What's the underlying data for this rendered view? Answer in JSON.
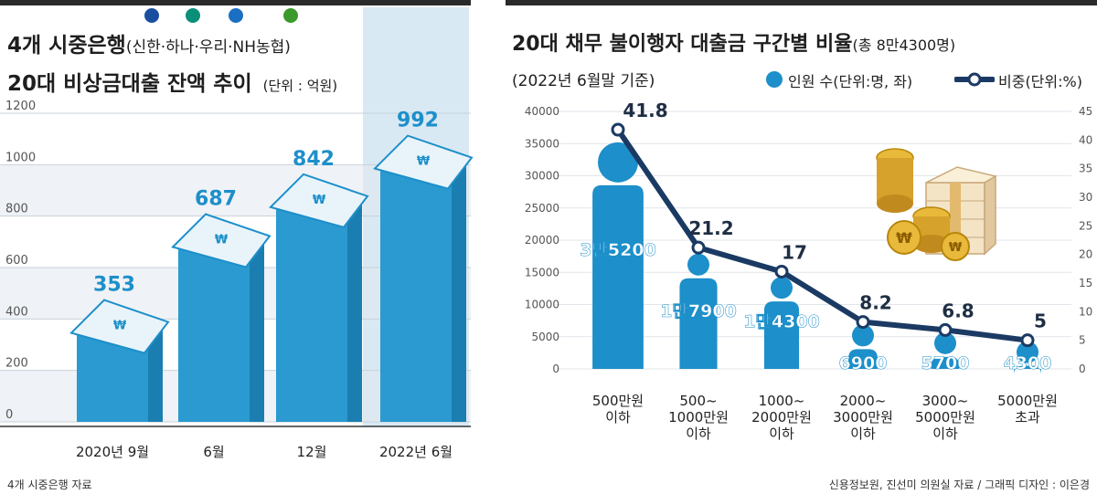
{
  "left": {
    "title_main": "4개 시중은행",
    "title_banks": "(신한·하나·우리·NH농협)",
    "title_line2": "20대 비상금대출 잔액 추이",
    "unit": "(단위 : 억원)",
    "source": "4개 시중은행 자료",
    "bank_logos": [
      {
        "name": "shinhan-logo",
        "color": "#1a4fa0"
      },
      {
        "name": "hana-logo",
        "color": "#0a8f7a"
      },
      {
        "name": "woori-logo",
        "color": "#1a6fc2"
      },
      {
        "name": "nh-logo",
        "color": "#3a9a2a"
      }
    ]
  },
  "right": {
    "title_main": "20대 채무 불이행자 대출금 구간별 비율",
    "title_total": "(총 8만4300명)",
    "subtitle": "(2022년 6월말 기준)",
    "legend_people": "인원 수(단위:명, 좌)",
    "legend_ratio": "비중(단위:%)",
    "source": "신용정보원, 진선미 의원실 자료 / 그래픽 디자인 : 이은경"
  },
  "chart_data": [
    {
      "type": "bar",
      "categories": [
        "2020년 9월",
        "6월",
        "12월",
        "2022년 6월"
      ],
      "values": [
        353,
        687,
        842,
        992
      ],
      "ylim": [
        0,
        1200
      ],
      "yticks": [
        0,
        200,
        400,
        600,
        800,
        1000,
        1200
      ],
      "highlight_index": 3,
      "grid": "alternating bands",
      "colors": {
        "bar": "#2a9ad0",
        "highlight": "#d9e9f4",
        "label": "#1d8fca"
      }
    },
    {
      "type": "bar",
      "categories": [
        "500만원\n이하",
        "500~\n1000만원\n이하",
        "1000~\n2000만원\n이하",
        "2000~\n3000만원\n이하",
        "3000~\n5000만원\n이하",
        "5000만원\n초과"
      ],
      "series": [
        {
          "values": [
            35200,
            17900,
            14300,
            6900,
            5700,
            4300
          ],
          "labels": [
            "3만5200",
            "1만7900",
            "1만4300",
            "6900",
            "5700",
            "4300"
          ],
          "axis": "left"
        },
        {
          "values": [
            41.8,
            21.2,
            17,
            8.2,
            6.8,
            5
          ],
          "axis": "right",
          "type": "line"
        }
      ],
      "ylim_left": [
        0,
        40000
      ],
      "yticks_left": [
        0,
        5000,
        10000,
        15000,
        20000,
        25000,
        30000,
        35000,
        40000
      ],
      "ylim_right": [
        0,
        45
      ],
      "yticks_right": [
        0,
        5,
        10,
        15,
        20,
        25,
        30,
        35,
        40,
        45
      ],
      "colors": {
        "people": "#1d8fca",
        "line": "#1b3a63"
      }
    }
  ]
}
